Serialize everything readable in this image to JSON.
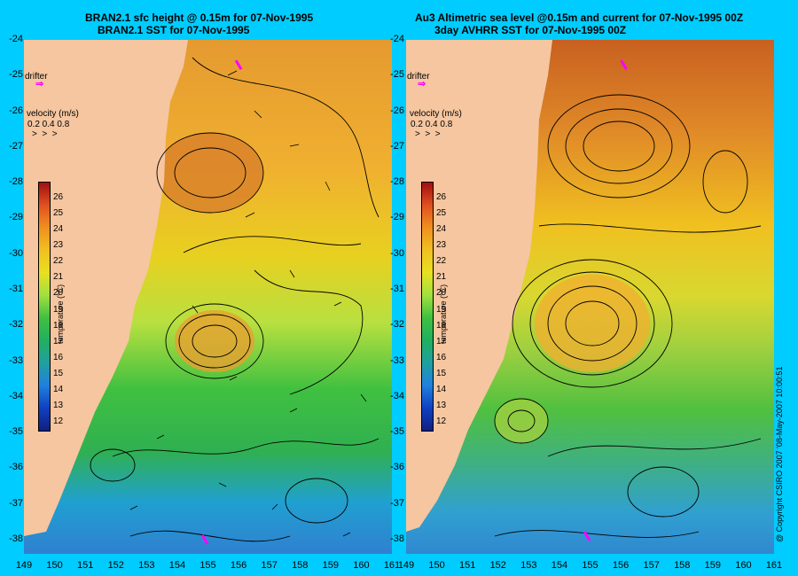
{
  "left_panel": {
    "title_line1": "BRAN2.1 sfc height @ 0.15m for 07-Nov-1995",
    "title_line2": "BRAN2.1 SST for 07-Nov-1995"
  },
  "right_panel": {
    "title_line1": "Au3 Altimetric sea level  @0.15m and current for 07-Nov-1995 00Z",
    "title_line2": "3day AVHRR SST for 07-Nov-1995 00Z"
  },
  "labels": {
    "drifter": "drifter",
    "velocity_title": "velocity (m/s)",
    "velocity_scale": "0.2 0.4 0.8",
    "temperature": "temperature (°C)",
    "copyright": "@ Copyright CSIRO 2007 '08-May-2007 10:00:51"
  },
  "colors": {
    "background": "#00ccff",
    "land": "#f5c6a0",
    "drifter": "#ff00ff"
  },
  "chart_data": {
    "type": "heatmap",
    "x_ticks": [
      "149",
      "150",
      "151",
      "152",
      "153",
      "154",
      "155",
      "156",
      "157",
      "158",
      "159",
      "160",
      "161"
    ],
    "y_ticks": [
      "-24",
      "-25",
      "-26",
      "-27",
      "-28",
      "-29",
      "-30",
      "-31",
      "-32",
      "-33",
      "-34",
      "-35",
      "-36",
      "-37",
      "-38"
    ],
    "xlim": [
      149,
      161
    ],
    "ylim": [
      -38.4,
      -24
    ],
    "colorbar_ticks": [
      "26",
      "25",
      "24",
      "23",
      "22",
      "21",
      "20",
      "19",
      "18",
      "17",
      "16",
      "15",
      "14",
      "13",
      "12"
    ],
    "colorbar_range": [
      11.5,
      27
    ],
    "drifter_left": [
      {
        "lon": 156.0,
        "lat": -24.7
      },
      {
        "lon": 154.9,
        "lat": -38.0
      }
    ],
    "drifter_right": [
      {
        "lon": 156.1,
        "lat": -24.7
      },
      {
        "lon": 154.9,
        "lat": -37.9
      }
    ]
  }
}
